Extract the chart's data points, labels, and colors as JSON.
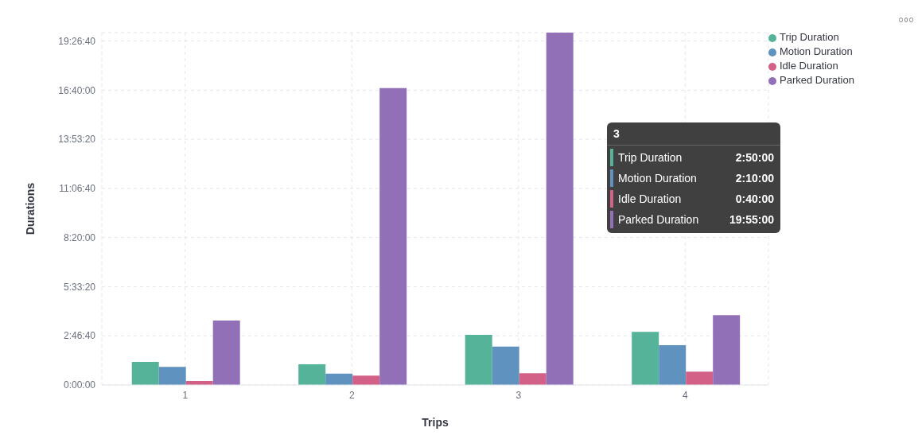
{
  "chart_data": {
    "type": "bar",
    "xlabel": "Trips",
    "ylabel": "Durations",
    "categories": [
      "1",
      "2",
      "3",
      "4"
    ],
    "series": [
      {
        "name": "Trip Duration",
        "color": "#54b399",
        "values": [
          4700,
          4200,
          10200,
          10800
        ]
      },
      {
        "name": "Motion Duration",
        "color": "#6092c0",
        "values": [
          3700,
          2300,
          7800,
          8100
        ]
      },
      {
        "name": "Idle Duration",
        "color": "#d36086",
        "values": [
          800,
          1900,
          2400,
          2700
        ]
      },
      {
        "name": "Parked Duration",
        "color": "#9170b8",
        "values": [
          13100,
          60400,
          71700,
          14200
        ]
      }
    ],
    "ylim": [
      0,
      71700
    ],
    "yticks": [
      {
        "value": 0,
        "label": "0:00:00"
      },
      {
        "value": 10000,
        "label": "2:46:40"
      },
      {
        "value": 20000,
        "label": "5:33:20"
      },
      {
        "value": 30000,
        "label": "8:20:00"
      },
      {
        "value": 40000,
        "label": "11:06:40"
      },
      {
        "value": 50000,
        "label": "13:53:20"
      },
      {
        "value": 60000,
        "label": "16:40:00"
      },
      {
        "value": 70000,
        "label": "19:26:40"
      }
    ],
    "annotations": [
      "3",
      "Trip Duration",
      "2:50:00",
      "Motion Duration",
      "2:10:00",
      "Idle Duration",
      "0:40:00",
      "Parked Duration",
      "19:55:00"
    ],
    "grid": true,
    "legend": "top right"
  }
}
